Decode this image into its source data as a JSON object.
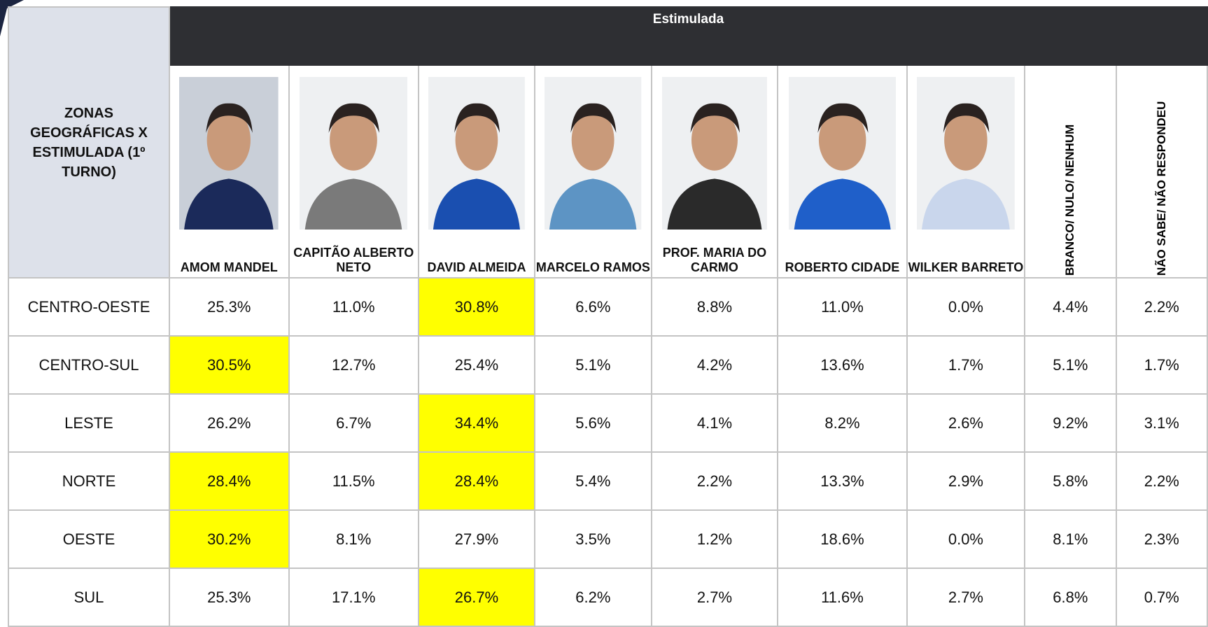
{
  "header": {
    "corner_title": "ZONAS GEOGRÁFICAS X ESTIMULADA (1º TURNO)",
    "group_title": "Estimulada"
  },
  "candidates": [
    "AMOM MANDEL",
    "CAPITÃO ALBERTO NETO",
    "DAVID ALMEIDA",
    "MARCELO RAMOS",
    "PROF. MARIA DO CARMO",
    "ROBERTO CIDADE",
    "WILKER BARRETO"
  ],
  "other_options": [
    "BRANCO/ NULO/ NENHUM",
    "NÃO SABE/ NÃO RESPONDEU"
  ],
  "highlight_color": "#ffff00",
  "rows": [
    {
      "zone": "CENTRO-OESTE",
      "values": [
        "25.3%",
        "11.0%",
        "30.8%",
        "6.6%",
        "8.8%",
        "11.0%",
        "0.0%",
        "4.4%",
        "2.2%"
      ]
    },
    {
      "zone": "CENTRO-SUL",
      "values": [
        "30.5%",
        "12.7%",
        "25.4%",
        "5.1%",
        "4.2%",
        "13.6%",
        "1.7%",
        "5.1%",
        "1.7%"
      ]
    },
    {
      "zone": "LESTE",
      "values": [
        "26.2%",
        "6.7%",
        "34.4%",
        "5.6%",
        "4.1%",
        "8.2%",
        "2.6%",
        "9.2%",
        "3.1%"
      ]
    },
    {
      "zone": "NORTE",
      "values": [
        "28.4%",
        "11.5%",
        "28.4%",
        "5.4%",
        "2.2%",
        "13.3%",
        "2.9%",
        "5.8%",
        "2.2%"
      ]
    },
    {
      "zone": "OESTE",
      "values": [
        "30.2%",
        "8.1%",
        "27.9%",
        "3.5%",
        "1.2%",
        "18.6%",
        "0.0%",
        "8.1%",
        "2.3%"
      ]
    },
    {
      "zone": "SUL",
      "values": [
        "25.3%",
        "17.1%",
        "26.7%",
        "6.2%",
        "2.7%",
        "11.6%",
        "2.7%",
        "6.8%",
        "0.7%"
      ]
    }
  ]
}
